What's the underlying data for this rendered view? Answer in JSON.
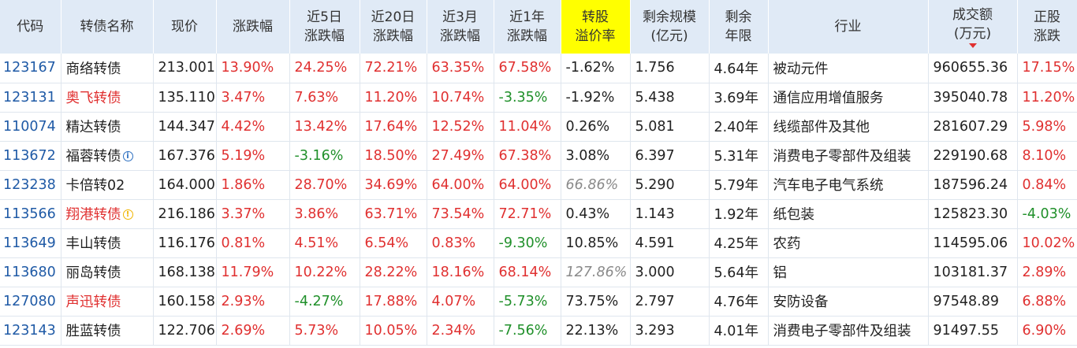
{
  "headers": {
    "code": "代码",
    "name": "转债名称",
    "price": "现价",
    "change": "涨跌幅",
    "chg5d_1": "近5日",
    "chg5d_2": "涨跌幅",
    "chg20d_1": "近20日",
    "chg20d_2": "涨跌幅",
    "chg3m_1": "近3月",
    "chg3m_2": "涨跌幅",
    "chg1y_1": "近1年",
    "chg1y_2": "涨跌幅",
    "premium_1": "转股",
    "premium_2": "溢价率",
    "scale_1": "剩余规模",
    "scale_2": "(亿元)",
    "years_1": "剩余",
    "years_2": "年限",
    "industry": "行业",
    "volume_1": "成交额",
    "volume_2": "(万元)",
    "stock_1": "正股",
    "stock_2": "涨跌"
  },
  "colors": {
    "header_bg": "#e0eaf6",
    "highlight": "#ffff00",
    "up": "#e03030",
    "down": "#20902a",
    "code": "#1f5aa6"
  },
  "rows": [
    {
      "code": "123167",
      "name": "商络转债",
      "name_style": "normal",
      "icon": "",
      "price": "213.001",
      "change": "13.90%",
      "chg5d": "24.25%",
      "chg20d": "72.21%",
      "chg3m": "63.35%",
      "chg1y": "67.58%",
      "premium": "-1.62%",
      "premium_style": "normal",
      "scale": "1.756",
      "years": "4.64年",
      "industry": "被动元件",
      "volume": "960655.36",
      "stock": "17.15%"
    },
    {
      "code": "123131",
      "name": "奥飞转债",
      "name_style": "red",
      "icon": "",
      "price": "135.110",
      "change": "3.47%",
      "chg5d": "7.63%",
      "chg20d": "11.20%",
      "chg3m": "10.74%",
      "chg1y": "-3.35%",
      "premium": "-1.92%",
      "premium_style": "normal",
      "scale": "5.438",
      "years": "3.69年",
      "industry": "通信应用增值服务",
      "volume": "395040.78",
      "stock": "11.20%"
    },
    {
      "code": "110074",
      "name": "精达转债",
      "name_style": "normal",
      "icon": "",
      "price": "144.347",
      "change": "4.42%",
      "chg5d": "13.42%",
      "chg20d": "17.64%",
      "chg3m": "12.52%",
      "chg1y": "11.04%",
      "premium": "0.26%",
      "premium_style": "normal",
      "scale": "5.081",
      "years": "2.40年",
      "industry": "线缆部件及其他",
      "volume": "281607.29",
      "stock": "5.98%"
    },
    {
      "code": "113672",
      "name": "福蓉转债",
      "name_style": "normal",
      "icon": "blue",
      "price": "167.376",
      "change": "5.19%",
      "chg5d": "-3.16%",
      "chg20d": "18.50%",
      "chg3m": "27.49%",
      "chg1y": "67.38%",
      "premium": "3.08%",
      "premium_style": "normal",
      "scale": "6.397",
      "years": "5.31年",
      "industry": "消费电子零部件及组装",
      "volume": "229190.68",
      "stock": "8.10%"
    },
    {
      "code": "123238",
      "name": "卡倍转02",
      "name_style": "normal",
      "icon": "",
      "price": "164.000",
      "change": "1.86%",
      "chg5d": "28.70%",
      "chg20d": "34.69%",
      "chg3m": "64.00%",
      "chg1y": "64.00%",
      "premium": "66.86%",
      "premium_style": "gray",
      "scale": "5.290",
      "years": "5.79年",
      "industry": "汽车电子电气系统",
      "volume": "187596.24",
      "stock": "0.84%"
    },
    {
      "code": "113566",
      "name": "翔港转债",
      "name_style": "red",
      "icon": "yellow",
      "price": "216.186",
      "change": "3.37%",
      "chg5d": "3.86%",
      "chg20d": "63.71%",
      "chg3m": "73.54%",
      "chg1y": "72.71%",
      "premium": "0.43%",
      "premium_style": "normal",
      "scale": "1.143",
      "years": "1.92年",
      "industry": "纸包装",
      "volume": "125823.30",
      "stock": "-4.03%"
    },
    {
      "code": "113649",
      "name": "丰山转债",
      "name_style": "normal",
      "icon": "",
      "price": "116.176",
      "change": "0.81%",
      "chg5d": "4.51%",
      "chg20d": "6.54%",
      "chg3m": "0.83%",
      "chg1y": "-9.30%",
      "premium": "10.85%",
      "premium_style": "normal",
      "scale": "4.591",
      "years": "4.25年",
      "industry": "农药",
      "volume": "114595.06",
      "stock": "10.02%"
    },
    {
      "code": "113680",
      "name": "丽岛转债",
      "name_style": "normal",
      "icon": "",
      "price": "168.138",
      "change": "11.79%",
      "chg5d": "10.22%",
      "chg20d": "28.22%",
      "chg3m": "18.16%",
      "chg1y": "68.14%",
      "premium": "127.86%",
      "premium_style": "gray",
      "scale": "3.000",
      "years": "5.64年",
      "industry": "铝",
      "volume": "103181.37",
      "stock": "2.89%"
    },
    {
      "code": "127080",
      "name": "声迅转债",
      "name_style": "red",
      "icon": "",
      "price": "160.158",
      "change": "2.93%",
      "chg5d": "-4.27%",
      "chg20d": "17.88%",
      "chg3m": "4.07%",
      "chg1y": "-5.73%",
      "premium": "73.75%",
      "premium_style": "normal",
      "scale": "2.797",
      "years": "4.76年",
      "industry": "安防设备",
      "volume": "97548.89",
      "stock": "6.88%"
    },
    {
      "code": "123143",
      "name": "胜蓝转债",
      "name_style": "normal",
      "icon": "",
      "price": "122.706",
      "change": "2.69%",
      "chg5d": "5.73%",
      "chg20d": "10.05%",
      "chg3m": "2.34%",
      "chg1y": "-7.56%",
      "premium": "22.13%",
      "premium_style": "normal",
      "scale": "3.293",
      "years": "4.01年",
      "industry": "消费电子零部件及组装",
      "volume": "91497.55",
      "stock": "6.90%"
    }
  ]
}
